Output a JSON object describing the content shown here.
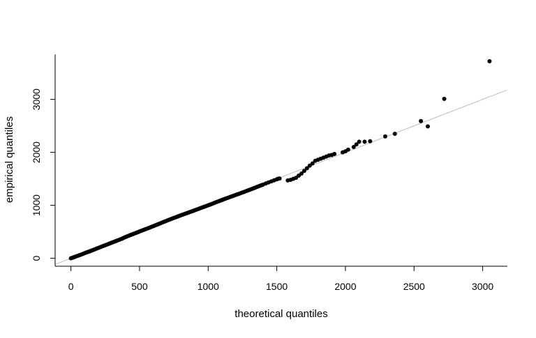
{
  "chart_data": {
    "type": "scatter",
    "title": "",
    "xlabel": "theoretical quantiles",
    "ylabel": "empirical quantiles",
    "xlim": [
      -115,
      3180
    ],
    "ylim": [
      -150,
      3850
    ],
    "xticks": [
      {
        "value": 0,
        "label": "0"
      },
      {
        "value": 500,
        "label": "500"
      },
      {
        "value": 1000,
        "label": "1000"
      },
      {
        "value": 1500,
        "label": "1500"
      },
      {
        "value": 2000,
        "label": "2000"
      },
      {
        "value": 2500,
        "label": "2500"
      },
      {
        "value": 3000,
        "label": "3000"
      }
    ],
    "yticks": [
      {
        "value": 0,
        "label": "0"
      },
      {
        "value": 1000,
        "label": "1000"
      },
      {
        "value": 2000,
        "label": "2000"
      },
      {
        "value": 3000,
        "label": "3000"
      }
    ],
    "grid": false,
    "legend": "none",
    "reference_line": {
      "intercept": 0,
      "slope": 1,
      "color": "#bebebe"
    },
    "point_color": "#000000",
    "points": [
      [
        0,
        0
      ],
      [
        10,
        10
      ],
      [
        20,
        18
      ],
      [
        30,
        28
      ],
      [
        40,
        38
      ],
      [
        50,
        48
      ],
      [
        60,
        58
      ],
      [
        70,
        66
      ],
      [
        80,
        76
      ],
      [
        90,
        86
      ],
      [
        100,
        96
      ],
      [
        110,
        106
      ],
      [
        120,
        116
      ],
      [
        130,
        125
      ],
      [
        140,
        135
      ],
      [
        150,
        145
      ],
      [
        160,
        155
      ],
      [
        170,
        165
      ],
      [
        180,
        176
      ],
      [
        190,
        186
      ],
      [
        200,
        196
      ],
      [
        210,
        206
      ],
      [
        220,
        216
      ],
      [
        230,
        226
      ],
      [
        240,
        236
      ],
      [
        250,
        246
      ],
      [
        260,
        256
      ],
      [
        270,
        266
      ],
      [
        280,
        277
      ],
      [
        290,
        287
      ],
      [
        300,
        297
      ],
      [
        310,
        307
      ],
      [
        320,
        317
      ],
      [
        330,
        327
      ],
      [
        340,
        337
      ],
      [
        350,
        347
      ],
      [
        360,
        358
      ],
      [
        370,
        368
      ],
      [
        380,
        380
      ],
      [
        390,
        392
      ],
      [
        400,
        403
      ],
      [
        410,
        414
      ],
      [
        420,
        424
      ],
      [
        430,
        435
      ],
      [
        440,
        445
      ],
      [
        450,
        455
      ],
      [
        460,
        465
      ],
      [
        470,
        475
      ],
      [
        480,
        485
      ],
      [
        490,
        495
      ],
      [
        500,
        506
      ],
      [
        510,
        516
      ],
      [
        520,
        526
      ],
      [
        530,
        536
      ],
      [
        540,
        546
      ],
      [
        550,
        556
      ],
      [
        560,
        566
      ],
      [
        570,
        576
      ],
      [
        580,
        586
      ],
      [
        590,
        597
      ],
      [
        600,
        607
      ],
      [
        610,
        617
      ],
      [
        620,
        628
      ],
      [
        630,
        638
      ],
      [
        640,
        648
      ],
      [
        650,
        659
      ],
      [
        660,
        669
      ],
      [
        670,
        680
      ],
      [
        680,
        690
      ],
      [
        690,
        700
      ],
      [
        700,
        711
      ],
      [
        710,
        721
      ],
      [
        720,
        731
      ],
      [
        730,
        741
      ],
      [
        740,
        751
      ],
      [
        750,
        761
      ],
      [
        760,
        771
      ],
      [
        770,
        781
      ],
      [
        780,
        791
      ],
      [
        790,
        801
      ],
      [
        800,
        810
      ],
      [
        810,
        820
      ],
      [
        820,
        829
      ],
      [
        830,
        839
      ],
      [
        840,
        848
      ],
      [
        850,
        857
      ],
      [
        860,
        867
      ],
      [
        870,
        876
      ],
      [
        880,
        885
      ],
      [
        890,
        895
      ],
      [
        900,
        904
      ],
      [
        910,
        914
      ],
      [
        920,
        924
      ],
      [
        930,
        933
      ],
      [
        940,
        943
      ],
      [
        950,
        952
      ],
      [
        960,
        962
      ],
      [
        970,
        971
      ],
      [
        980,
        981
      ],
      [
        990,
        990
      ],
      [
        1000,
        1000
      ],
      [
        1010,
        1010
      ],
      [
        1020,
        1020
      ],
      [
        1030,
        1030
      ],
      [
        1040,
        1040
      ],
      [
        1050,
        1050
      ],
      [
        1060,
        1060
      ],
      [
        1070,
        1070
      ],
      [
        1080,
        1080
      ],
      [
        1090,
        1090
      ],
      [
        1100,
        1100
      ],
      [
        1110,
        1110
      ],
      [
        1120,
        1119
      ],
      [
        1130,
        1129
      ],
      [
        1140,
        1138
      ],
      [
        1150,
        1148
      ],
      [
        1160,
        1157
      ],
      [
        1170,
        1167
      ],
      [
        1180,
        1176
      ],
      [
        1190,
        1186
      ],
      [
        1200,
        1195
      ],
      [
        1210,
        1205
      ],
      [
        1220,
        1214
      ],
      [
        1230,
        1224
      ],
      [
        1240,
        1233
      ],
      [
        1250,
        1243
      ],
      [
        1260,
        1252
      ],
      [
        1270,
        1262
      ],
      [
        1280,
        1271
      ],
      [
        1290,
        1281
      ],
      [
        1300,
        1291
      ],
      [
        1310,
        1301
      ],
      [
        1320,
        1311
      ],
      [
        1330,
        1321
      ],
      [
        1340,
        1331
      ],
      [
        1350,
        1341
      ],
      [
        1360,
        1351
      ],
      [
        1370,
        1361
      ],
      [
        1380,
        1371
      ],
      [
        1390,
        1381
      ],
      [
        1400,
        1391
      ],
      [
        1420,
        1412
      ],
      [
        1440,
        1432
      ],
      [
        1460,
        1452
      ],
      [
        1480,
        1472
      ],
      [
        1500,
        1492
      ],
      [
        1510,
        1502
      ],
      [
        1520,
        1507
      ],
      [
        1580,
        1470
      ],
      [
        1600,
        1480
      ],
      [
        1620,
        1500
      ],
      [
        1640,
        1520
      ],
      [
        1660,
        1560
      ],
      [
        1680,
        1600
      ],
      [
        1700,
        1650
      ],
      [
        1720,
        1700
      ],
      [
        1740,
        1750
      ],
      [
        1760,
        1790
      ],
      [
        1780,
        1840
      ],
      [
        1800,
        1860
      ],
      [
        1820,
        1880
      ],
      [
        1840,
        1900
      ],
      [
        1860,
        1920
      ],
      [
        1880,
        1940
      ],
      [
        1900,
        1950
      ],
      [
        1920,
        1970
      ],
      [
        1980,
        2000
      ],
      [
        2000,
        2020
      ],
      [
        2020,
        2050
      ],
      [
        2060,
        2100
      ],
      [
        2080,
        2150
      ],
      [
        2100,
        2200
      ],
      [
        2140,
        2200
      ],
      [
        2180,
        2210
      ],
      [
        2290,
        2300
      ],
      [
        2360,
        2350
      ],
      [
        2550,
        2590
      ],
      [
        2600,
        2490
      ],
      [
        2720,
        3010
      ],
      [
        3050,
        3720
      ]
    ]
  }
}
